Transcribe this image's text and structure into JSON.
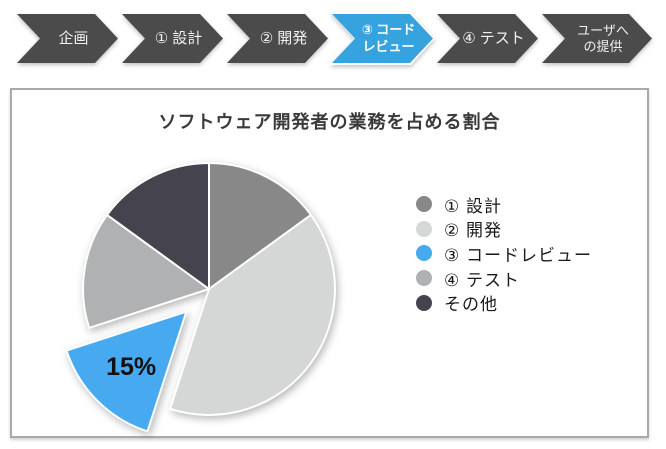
{
  "flow": {
    "steps": [
      {
        "lines": [
          "企画"
        ]
      },
      {
        "lines": [
          "① 設計"
        ]
      },
      {
        "lines": [
          "② 開発"
        ]
      },
      {
        "lines": [
          "③ コード",
          "レビュー"
        ],
        "active": true
      },
      {
        "lines": [
          "④ テスト"
        ]
      },
      {
        "lines": [
          "ユーザへ",
          "の提供"
        ]
      }
    ],
    "colors": {
      "step_bg": "#4B4B4B",
      "active_bg": "#36A2DE",
      "text": "#F2F2F2"
    }
  },
  "chart_data": {
    "type": "pie",
    "title": "ソフトウェア開発者の業務を占める割合",
    "legend_position": "right",
    "start_angle_deg": 0,
    "direction": "clockwise",
    "slices": [
      {
        "name": "① 設計",
        "value": 15,
        "color": "#888888"
      },
      {
        "name": "② 開発",
        "value": 40,
        "color": "#D5D7D7"
      },
      {
        "name": "③ コードレビュー",
        "value": 15,
        "color": "#47AAF0",
        "exploded": true,
        "label": "15%"
      },
      {
        "name": "④ テスト",
        "value": 15,
        "color": "#AFB1B3"
      },
      {
        "name": "その他",
        "value": 15,
        "color": "#45444E"
      }
    ]
  }
}
